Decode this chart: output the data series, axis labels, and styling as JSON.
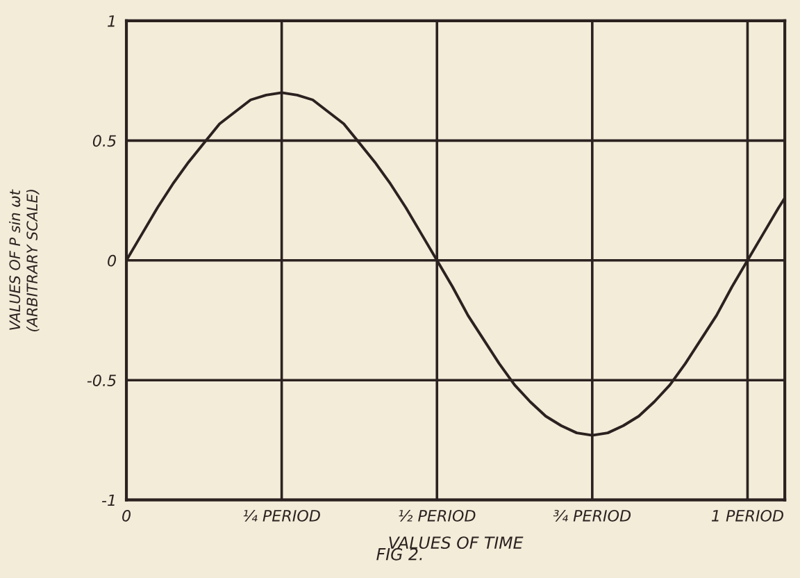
{
  "chart_data": {
    "type": "line",
    "xlabel": "VALUES OF TIME",
    "ylabel": "VALUES OF P sin ωt\n(ARBITRARY SCALE)",
    "annotations": [
      "FIG 2."
    ],
    "x": [
      0,
      0.025,
      0.05,
      0.075,
      0.1,
      0.125,
      0.15,
      0.175,
      0.2,
      0.225,
      0.25,
      0.275,
      0.3,
      0.325,
      0.35,
      0.375,
      0.4,
      0.425,
      0.45,
      0.475,
      0.5,
      0.525,
      0.55,
      0.575,
      0.6,
      0.625,
      0.65,
      0.675,
      0.7,
      0.725,
      0.75,
      0.775,
      0.8,
      0.825,
      0.85,
      0.875,
      0.9,
      0.925,
      0.95,
      0.975,
      1.0,
      1.025,
      1.05,
      1.06
    ],
    "series": [
      {
        "color": "#2b2220",
        "values": [
          0,
          0.11,
          0.22,
          0.32,
          0.41,
          0.49,
          0.57,
          0.62,
          0.67,
          0.69,
          0.7,
          0.69,
          0.67,
          0.62,
          0.57,
          0.49,
          0.41,
          0.32,
          0.22,
          0.11,
          0,
          -0.11,
          -0.23,
          -0.33,
          -0.43,
          -0.52,
          -0.59,
          -0.65,
          -0.69,
          -0.72,
          -0.73,
          -0.72,
          -0.69,
          -0.65,
          -0.59,
          -0.52,
          -0.43,
          -0.33,
          -0.23,
          -0.11,
          0,
          0.11,
          0.22,
          0.26
        ]
      }
    ],
    "xlim": [
      0,
      1.06
    ],
    "xticks": [
      0,
      {
        "value": 0.25,
        "label": "¼ PERIOD"
      },
      {
        "value": 0.5,
        "label": "½ PERIOD"
      },
      {
        "value": 0.75,
        "label": "¾ PERIOD"
      },
      {
        "value": 1,
        "label": "1 PERIOD"
      }
    ],
    "ylim": [
      -1,
      1
    ],
    "yticks": [
      -1,
      -0.5,
      0,
      0.5,
      1
    ],
    "grid": true,
    "marker": "none",
    "line_style": "solid"
  }
}
